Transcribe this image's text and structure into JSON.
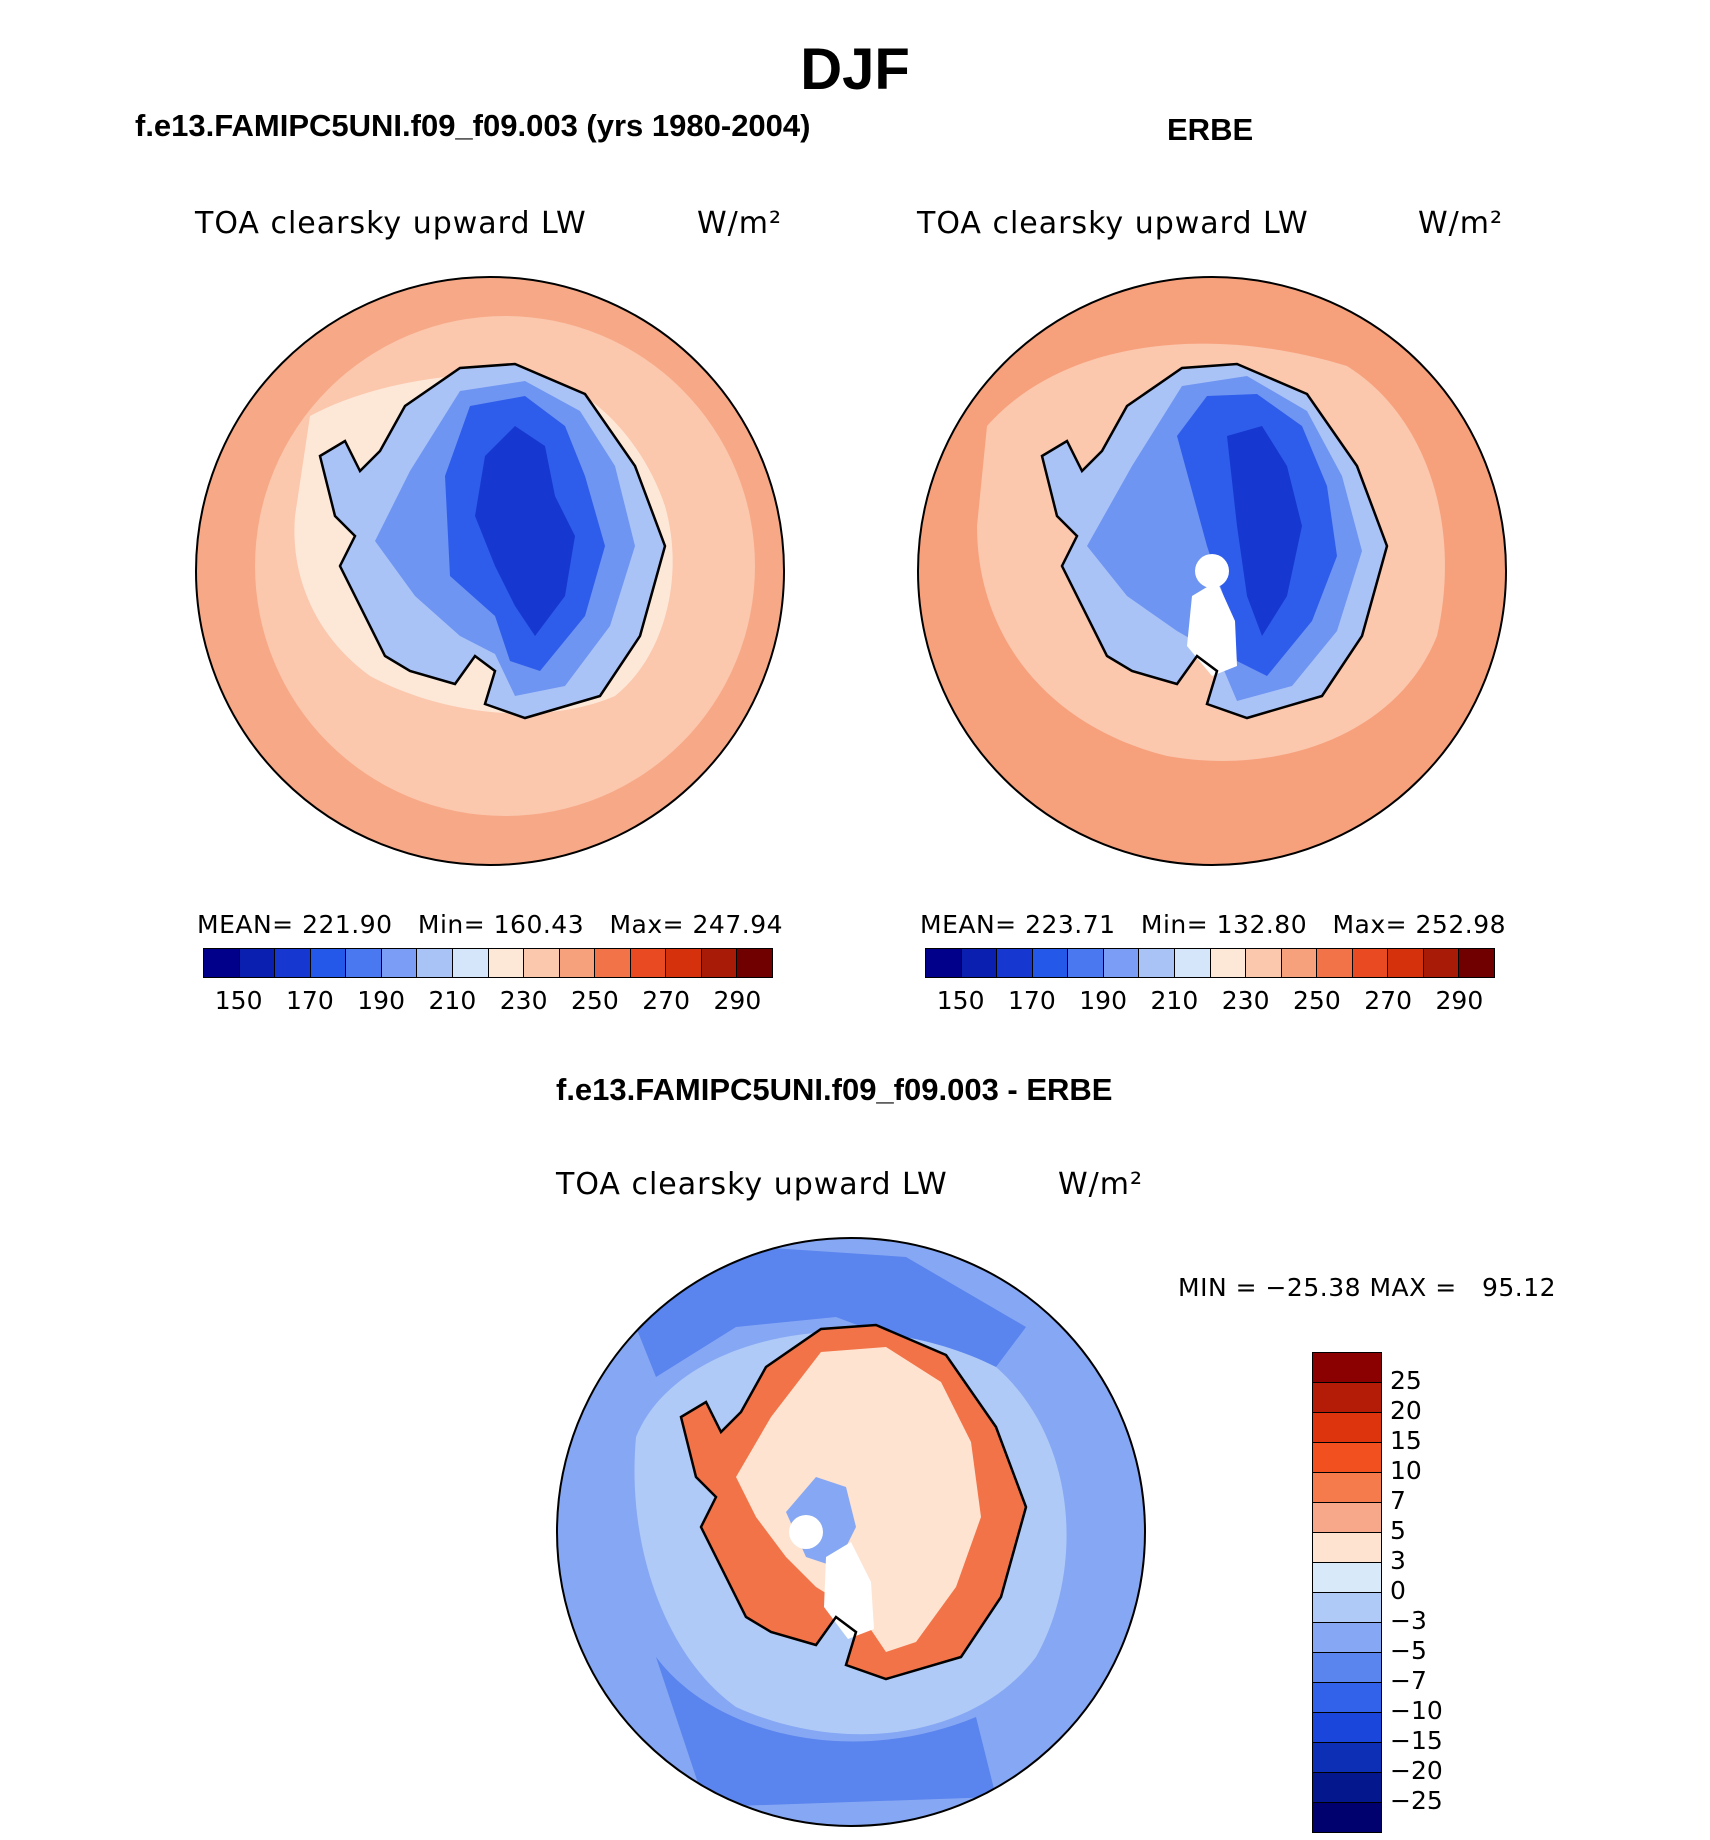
{
  "title": "DJF",
  "panels": [
    {
      "id": "model",
      "subtitle": "f.e13.FAMIPC5UNI.f09_f09.003 (yrs 1980-2004)",
      "variable": "TOA clearsky upward LW",
      "units": "W/m²",
      "stats": "MEAN= 221.90   Min= 160.43   Max= 247.94"
    },
    {
      "id": "obs",
      "subtitle": "ERBE",
      "variable": "TOA clearsky upward LW",
      "units": "W/m²",
      "stats": "MEAN= 223.71   Min= 132.80   Max= 252.98"
    },
    {
      "id": "diff",
      "subtitle": "f.e13.FAMIPC5UNI.f09_f09.003 - ERBE",
      "variable": "TOA clearsky upward LW",
      "units": "W/m²",
      "stats": "MIN = −25.38 MAX =   95.12"
    }
  ],
  "abs_colorbar": {
    "labels": [
      "150",
      "170",
      "190",
      "210",
      "230",
      "250",
      "270",
      "290"
    ],
    "colors": [
      "#00008b",
      "#0a1fb0",
      "#1638d0",
      "#2458e8",
      "#4a78f0",
      "#7b9df5",
      "#aac3f7",
      "#d6e6fa",
      "#fde8d8",
      "#fbc7ad",
      "#f7a07c",
      "#f27348",
      "#ea4a22",
      "#d4310c",
      "#a81b06",
      "#700000"
    ]
  },
  "diff_colorbar": {
    "labels": [
      "25",
      "20",
      "15",
      "10",
      "7",
      "5",
      "3",
      "0",
      "−3",
      "−5",
      "−7",
      "−10",
      "−15",
      "−20",
      "−25"
    ],
    "colors": [
      "#8b0000",
      "#b51c08",
      "#dd340e",
      "#f35020",
      "#f57a4c",
      "#f8a88a",
      "#fde3d0",
      "#d8e9fa",
      "#afcaf7",
      "#86a7f3",
      "#5a84ee",
      "#3362ea",
      "#1b46dc",
      "#0c2fb6",
      "#05178c",
      "#00006e"
    ]
  },
  "map_colors": {
    "ocean_model": "#fbc7ad",
    "ocean_model_outer": "#f7a886",
    "ocean_obs": "#f7a07c",
    "ocean_obs_inner": "#fbc7ad",
    "land_1": "#aac3f7",
    "land_2": "#6f95f2",
    "land_3": "#2f5deb",
    "land_4": "#1638d0",
    "diff_ocean": "#86a7f3",
    "diff_ocean_2": "#5a84ee",
    "diff_ring": "#afcaf7",
    "diff_coast_red": "#f27348",
    "diff_interior": "#fde3d0",
    "missing": "#ffffff",
    "coastline": "#000000"
  }
}
